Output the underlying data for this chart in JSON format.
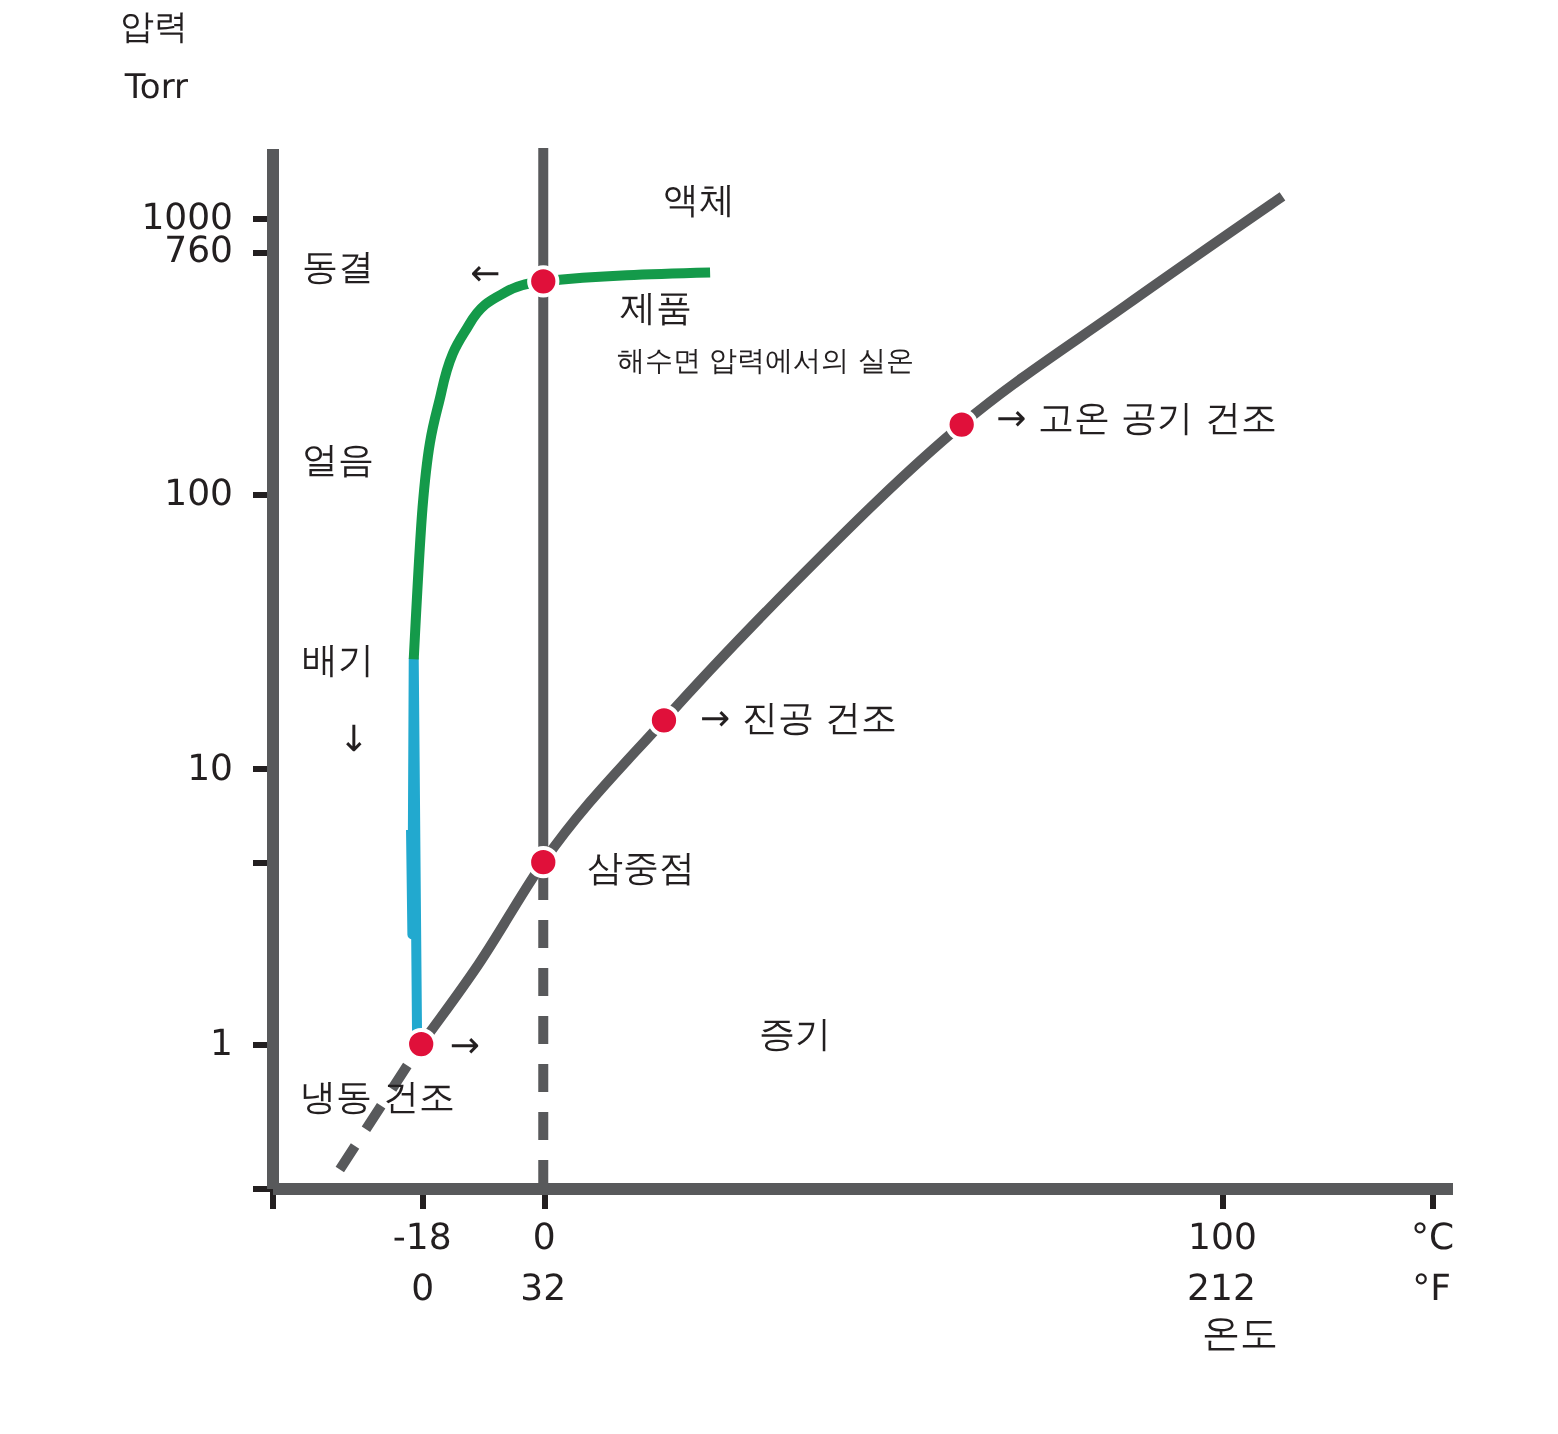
{
  "chart_data": {
    "type": "line",
    "ylabel": "압력\nTorr",
    "xlabel": "온도",
    "log": "y",
    "grid": false,
    "xlim": [
      -40,
      134
    ],
    "ylim": [
      0.3,
      1800
    ],
    "xticks": [
      {
        "value": -40,
        "label": null
      },
      -18,
      0,
      100,
      {
        "value": 131,
        "label": "°C"
      }
    ],
    "x2lim": [
      -40,
      273.2
    ],
    "x2ticks": [
      0,
      32,
      212,
      {
        "value": 267.8,
        "label": "°F"
      }
    ],
    "yticks": [
      {
        "value": 0.3,
        "label": null
      },
      1,
      {
        "value": 4.58,
        "label": null
      },
      10,
      100,
      760,
      1000
    ],
    "series": [
      {
        "color": "#58595b",
        "line_style": "dashed",
        "x": [
          -30,
          -18
        ],
        "values": [
          0.35,
          1
        ]
      },
      {
        "color": "#58595b",
        "line_style": "solid",
        "x": [
          -18,
          -9.6,
          0,
          17.8,
          36.9,
          61.7,
          86,
          109
        ],
        "values": [
          1,
          1.94,
          4.58,
          15,
          47,
          178,
          484,
          1200
        ]
      },
      {
        "color": "#58595b",
        "line_style": "dashed",
        "x": [
          0,
          0
        ],
        "values": [
          0.3,
          4.58
        ]
      },
      {
        "color": "#58595b",
        "line_style": "solid",
        "x": [
          0,
          0
        ],
        "values": [
          4.58,
          1800
        ]
      },
      {
        "color": "#22a9cf",
        "line_style": "solid",
        "x": [
          -18.6,
          -19.3,
          -19.5,
          -19.1
        ],
        "values": [
          1,
          2.5,
          6,
          25
        ]
      },
      {
        "color": "#149a4a",
        "line_style": "solid",
        "x": [
          -19.1,
          -17.8,
          -15,
          -10.9,
          -5.5,
          0,
          24.6
        ],
        "values": [
          25,
          89,
          235,
          412,
          540,
          590,
          635
        ]
      },
      {
        "type": "scatter",
        "color": "#e0103a",
        "marker": "circle",
        "x": [
          -18,
          0,
          0,
          17.8,
          61.7
        ],
        "values": [
          1,
          590,
          4.58,
          15,
          178
        ]
      }
    ],
    "annotations": [
      "액체",
      "동결",
      "←",
      "제품",
      "해수면 압력에서의 실온",
      "얼음",
      "→ 고온 공기 건조",
      "배기",
      "↓",
      "→ 진공 건조",
      "삼중점",
      "증기",
      "→",
      "냉동 건조"
    ]
  }
}
